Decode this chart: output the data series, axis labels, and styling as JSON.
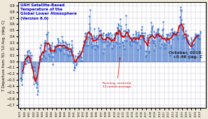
{
  "title_line1": "UAH Satellite-Based",
  "title_line2": "Temperature of the",
  "title_line3": "Global Lower Atmosphere",
  "title_line4": "(Version 6.0)",
  "title_color": "#0000cc",
  "ylim": [
    -0.75,
    0.95
  ],
  "yticks": [
    -0.7,
    -0.6,
    -0.5,
    -0.4,
    -0.3,
    -0.2,
    -0.1,
    0.0,
    0.1,
    0.2,
    0.3,
    0.4,
    0.5,
    0.6,
    0.7,
    0.8,
    0.9
  ],
  "annotation_text": "October, 2019:\n+0.46 deg. C",
  "annotation_color": "#222222",
  "running_avg_label": "Running, centered\n13-month average",
  "running_avg_color": "#cc0000",
  "bg_color": "#ede8d8",
  "plot_bg_color": "#ffffff",
  "grid_color": "#aaaacc",
  "monthly_color": "#4477cc",
  "ylabel": "T Departure from '81-'10 Avg. (deg. C)",
  "monthly_data": [
    -0.28,
    -0.26,
    -0.31,
    -0.38,
    -0.29,
    -0.15,
    -0.19,
    -0.18,
    -0.1,
    0.0,
    -0.05,
    0.04,
    0.1,
    -0.04,
    -0.04,
    0.05,
    0.1,
    0.02,
    0.14,
    0.16,
    -0.01,
    0.1,
    0.08,
    0.18,
    0.02,
    -0.01,
    0.1,
    0.14,
    0.05,
    0.1,
    -0.11,
    -0.08,
    -0.08,
    -0.25,
    -0.25,
    -0.27,
    -0.37,
    -0.15,
    -0.1,
    -0.3,
    -0.29,
    -0.34,
    -0.34,
    -0.42,
    -0.37,
    -0.54,
    -0.48,
    -0.12,
    -0.09,
    -0.03,
    0.03,
    0.08,
    0.09,
    0.22,
    0.27,
    0.04,
    0.01,
    0.04,
    0.05,
    0.13,
    0.1,
    0.16,
    0.09,
    0.3,
    0.25,
    0.33,
    0.18,
    0.05,
    0.16,
    0.26,
    0.44,
    0.44,
    0.7,
    0.47,
    0.21,
    0.12,
    0.09,
    0.2,
    0.2,
    0.27,
    0.22,
    0.2,
    0.14,
    0.25,
    0.3,
    0.08,
    -0.05,
    0.07,
    0.14,
    0.24,
    0.19,
    0.24,
    0.19,
    0.15,
    0.18,
    0.23,
    0.24,
    0.2,
    0.27,
    0.37,
    0.25,
    0.31,
    0.35,
    0.21,
    0.2,
    0.18,
    0.17,
    0.3,
    0.19,
    0.22,
    0.26,
    0.4,
    0.25,
    0.33,
    0.31,
    0.22,
    0.21,
    0.12,
    0.24,
    0.3,
    0.31,
    0.19,
    0.23,
    0.28,
    0.27,
    0.19,
    0.11,
    0.09,
    0.22,
    0.28,
    0.28,
    0.16,
    0.17,
    0.1,
    0.16,
    0.2,
    0.34,
    0.27,
    0.22,
    0.17,
    0.11,
    -0.01,
    0.01,
    -0.14,
    -0.1,
    -0.11,
    0.0,
    0.09,
    0.03,
    -0.06,
    -0.04,
    0.0,
    0.07,
    0.13,
    0.08,
    0.07,
    0.05,
    0.1,
    0.16,
    0.13,
    0.12,
    0.01,
    0.07,
    0.15,
    0.06,
    0.01,
    0.17,
    0.22,
    0.25,
    0.32,
    0.27,
    0.33,
    0.45,
    0.4,
    0.3,
    0.46,
    0.32,
    0.26,
    0.39,
    0.36,
    0.26,
    0.39,
    0.48,
    0.61,
    0.73,
    0.83,
    0.54,
    0.45,
    0.37,
    0.28,
    0.31,
    0.24,
    0.22,
    0.26,
    0.37,
    0.41,
    0.39,
    0.53,
    0.26,
    0.2,
    0.37,
    0.38,
    0.41,
    0.31,
    0.26,
    0.25,
    0.23,
    0.36,
    0.42,
    0.54,
    0.49,
    0.36,
    0.43,
    0.5,
    0.49,
    0.45,
    0.42,
    0.38,
    0.35,
    0.31,
    0.43,
    0.46,
    0.13,
    0.2,
    0.31,
    0.32,
    0.36,
    0.43,
    0.44,
    0.44,
    0.38,
    0.42,
    0.32,
    0.25,
    0.44,
    0.46,
    0.39,
    0.44,
    0.28,
    0.3,
    0.46,
    0.38,
    0.34,
    0.42,
    0.21,
    0.21,
    0.36,
    0.27,
    0.31,
    0.38,
    0.24,
    0.44,
    0.44,
    0.46,
    0.38,
    0.31,
    0.29,
    0.47,
    0.54,
    0.55,
    0.52,
    0.6,
    0.58,
    0.45,
    0.23,
    0.29,
    0.49,
    0.69,
    0.57,
    0.53,
    0.46,
    0.42,
    0.31,
    0.3,
    0.25,
    0.26,
    0.49,
    0.2,
    0.33,
    0.43,
    0.49,
    0.59,
    0.74,
    0.33,
    0.4,
    0.46,
    0.47,
    0.51,
    0.5,
    0.48,
    0.41,
    0.38,
    0.28,
    0.31,
    0.32,
    0.38,
    0.26,
    0.38,
    0.33,
    0.38,
    0.44,
    0.32,
    0.32,
    0.33,
    0.39,
    0.31,
    0.36,
    0.48,
    0.44,
    0.46,
    0.37,
    0.31,
    0.29,
    0.19,
    0.41,
    0.47,
    0.44,
    0.39,
    0.26,
    0.42,
    0.36,
    0.22,
    0.46,
    0.52,
    0.4,
    0.56,
    0.46,
    0.41,
    0.41,
    0.38,
    0.37,
    0.41,
    0.46,
    0.17,
    0.08,
    0.16,
    0.1,
    0.38,
    0.35,
    0.43,
    0.39,
    0.33,
    0.26,
    0.14,
    0.17,
    0.3,
    0.44,
    0.41,
    0.48,
    0.63,
    0.55,
    0.53,
    0.35,
    0.57,
    0.32,
    0.3,
    0.18,
    0.48,
    0.29,
    0.33,
    0.26,
    0.44,
    0.46,
    0.44,
    0.4,
    0.48,
    0.51,
    0.53,
    0.51,
    0.45,
    0.41,
    0.42,
    0.33,
    0.36,
    0.22,
    0.38,
    0.38,
    0.28,
    0.42,
    0.5,
    0.64,
    0.53,
    0.38,
    0.25,
    0.29,
    0.21,
    0.22,
    0.27,
    0.32,
    0.38,
    0.36,
    0.44,
    0.43,
    0.43,
    0.44,
    0.35,
    0.3,
    0.32,
    0.43,
    0.46,
    0.1,
    0.22,
    0.25,
    0.43,
    0.52,
    0.53,
    0.47,
    0.46,
    0.36,
    0.44,
    0.48,
    0.45,
    0.44,
    0.44,
    0.45,
    0.44,
    0.47,
    0.44,
    0.41,
    0.38,
    0.36,
    0.38,
    0.42,
    0.47,
    0.55,
    0.57,
    0.72,
    0.83,
    0.88,
    0.82,
    0.67,
    0.51,
    0.37,
    0.4,
    0.42,
    0.55,
    0.61,
    0.44,
    0.38,
    0.39,
    0.49,
    0.45,
    0.44,
    0.37,
    0.33,
    0.36,
    0.41,
    0.42,
    0.33,
    0.31,
    0.2,
    0.05,
    0.1,
    0.15,
    0.3,
    0.36,
    0.38,
    0.26,
    0.22,
    0.25,
    0.34,
    0.2,
    0.27,
    0.28,
    0.36,
    0.37,
    0.39,
    0.45,
    0.43,
    0.42,
    0.41,
    0.39,
    0.4,
    0.42,
    0.38,
    0.44,
    0.41,
    0.42,
    0.37,
    0.36,
    0.48,
    0.46
  ]
}
